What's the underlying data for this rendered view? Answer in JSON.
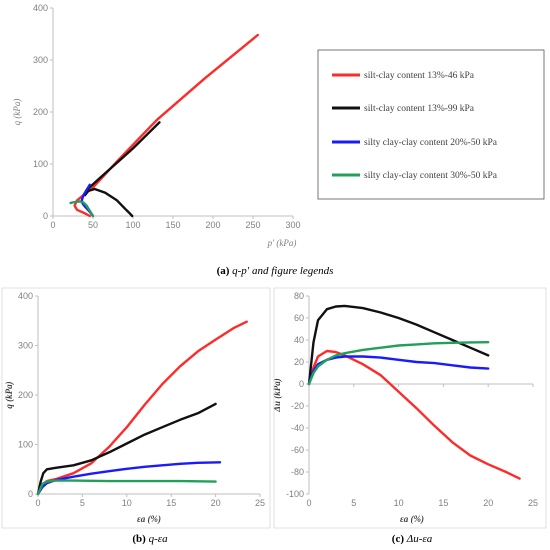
{
  "colors": {
    "red": "#ff2a2a",
    "black": "#111111",
    "blue": "#1a1aff",
    "green": "#21a05a"
  },
  "legend": {
    "items": [
      {
        "label": "silt-clay content 13%-46 kPa",
        "color": "#ff2a2a"
      },
      {
        "label": "silt-clay content 13%-99 kPa",
        "color": "#111111"
      },
      {
        "label": "silty clay-clay content 20%-50 kPa",
        "color": "#1a1aff"
      },
      {
        "label": "silty clay-clay content 30%-50 kPa",
        "color": "#21a05a"
      }
    ]
  },
  "captions": {
    "a": {
      "tag": "(a) ",
      "text": "q-p′ and figure legends"
    },
    "b": {
      "tag": "(b) ",
      "text": "q-εa"
    },
    "c": {
      "tag": "(c) ",
      "text": "Δu-εa"
    }
  },
  "chart_data": [
    {
      "id": "a",
      "type": "line",
      "xlabel": "p′ (kPa)",
      "ylabel": "q (kPa)",
      "xlim": [
        0,
        300
      ],
      "ylim": [
        0,
        400
      ],
      "xticks": [
        0,
        50,
        100,
        150,
        200,
        250,
        300
      ],
      "yticks": [
        0,
        100,
        200,
        300,
        400
      ],
      "grid": false,
      "legend": "right",
      "series": [
        {
          "name": "silt-clay content 13%-46 kPa",
          "color": "#ff2a2a",
          "x": [
            46,
            40,
            30,
            27,
            30,
            38,
            50,
            80,
            130,
            190,
            256
          ],
          "y": [
            0,
            5,
            12,
            20,
            30,
            40,
            55,
            105,
            185,
            265,
            348
          ]
        },
        {
          "name": "silt-clay content 13%-99 kPa",
          "color": "#111111",
          "x": [
            99,
            96,
            90,
            80,
            65,
            52,
            44,
            40,
            42,
            60,
            100,
            133
          ],
          "y": [
            0,
            5,
            14,
            30,
            45,
            52,
            48,
            40,
            50,
            75,
            130,
            180
          ]
        },
        {
          "name": "silty clay-clay content 20%-50 kPa",
          "color": "#1a1aff",
          "x": [
            50,
            46,
            40,
            37,
            36,
            38,
            42,
            46
          ],
          "y": [
            0,
            8,
            18,
            24,
            30,
            40,
            50,
            60
          ]
        },
        {
          "name": "silty clay-clay content 30%-50 kPa",
          "color": "#21a05a",
          "x": [
            50,
            46,
            42,
            38,
            33,
            28,
            24,
            22
          ],
          "y": [
            0,
            10,
            20,
            26,
            28,
            27,
            26,
            25
          ]
        }
      ]
    },
    {
      "id": "b",
      "type": "line",
      "xlabel": "εa (%)",
      "ylabel": "q (kPa)",
      "xlim": [
        0,
        25
      ],
      "ylim": [
        0,
        400
      ],
      "xticks": [
        0,
        5,
        10,
        15,
        20,
        25
      ],
      "yticks": [
        0,
        100,
        200,
        300,
        400
      ],
      "grid": false,
      "series": [
        {
          "name": "silt-clay content 13%-46 kPa",
          "color": "#ff2a2a",
          "x": [
            0,
            0.5,
            1,
            2,
            4,
            6,
            8,
            10,
            12,
            14,
            16,
            18,
            20,
            22,
            23.5
          ],
          "y": [
            0,
            20,
            26,
            30,
            42,
            62,
            95,
            135,
            180,
            222,
            258,
            288,
            312,
            335,
            348
          ]
        },
        {
          "name": "silt-clay content 13%-99 kPa",
          "color": "#111111",
          "x": [
            0,
            0.3,
            0.6,
            1,
            2,
            4,
            6,
            8,
            10,
            12,
            14,
            16,
            18,
            20
          ],
          "y": [
            0,
            25,
            42,
            50,
            53,
            58,
            68,
            84,
            102,
            120,
            135,
            150,
            163,
            182
          ]
        },
        {
          "name": "silty clay-clay content 20%-50 kPa",
          "color": "#1a1aff",
          "x": [
            0,
            0.5,
            1,
            2,
            4,
            6,
            8,
            10,
            12,
            14,
            16,
            18,
            20.5
          ],
          "y": [
            0,
            14,
            22,
            28,
            35,
            41,
            46,
            51,
            55,
            58,
            61,
            63,
            64
          ]
        },
        {
          "name": "silty clay-clay content 30%-50 kPa",
          "color": "#21a05a",
          "x": [
            0,
            0.5,
            1,
            2,
            4,
            8,
            12,
            16,
            20
          ],
          "y": [
            0,
            20,
            25,
            27,
            27,
            26,
            26,
            26,
            25
          ]
        }
      ]
    },
    {
      "id": "c",
      "type": "line",
      "xlabel": "εa (%)",
      "ylabel": "Δu (kPa)",
      "xlim": [
        0,
        25
      ],
      "ylim": [
        -100,
        80
      ],
      "xticks": [
        0,
        5,
        10,
        15,
        20,
        25
      ],
      "yticks": [
        -100,
        -80,
        -60,
        -40,
        -20,
        0,
        20,
        40,
        60,
        80
      ],
      "grid": false,
      "series": [
        {
          "name": "silt-clay content 13%-46 kPa",
          "color": "#ff2a2a",
          "x": [
            0,
            0.5,
            1,
            2,
            3,
            4,
            6,
            8,
            10,
            12,
            14,
            16,
            18,
            20,
            22,
            23.5
          ],
          "y": [
            0,
            15,
            25,
            30,
            29,
            26,
            18,
            8,
            -7,
            -22,
            -38,
            -53,
            -65,
            -73,
            -80,
            -86
          ]
        },
        {
          "name": "silt-clay content 13%-99 kPa",
          "color": "#111111",
          "x": [
            0,
            0.5,
            1,
            2,
            3,
            4,
            6,
            8,
            10,
            12,
            14,
            16,
            18,
            20
          ],
          "y": [
            0,
            38,
            58,
            68,
            70.5,
            71,
            69,
            65,
            60,
            54,
            47,
            40,
            33,
            26
          ]
        },
        {
          "name": "silty clay-clay content 20%-50 kPa",
          "color": "#1a1aff",
          "x": [
            0,
            0.5,
            1,
            2,
            3,
            4,
            6,
            8,
            10,
            12,
            14,
            16,
            18,
            20
          ],
          "y": [
            0,
            12,
            18,
            22,
            24,
            25,
            25,
            24,
            22,
            20,
            19,
            17,
            15,
            14
          ]
        },
        {
          "name": "silty clay-clay content 30%-50 kPa",
          "color": "#21a05a",
          "x": [
            0,
            0.5,
            1,
            2,
            3,
            4,
            6,
            8,
            10,
            12,
            14,
            16,
            18,
            20
          ],
          "y": [
            0,
            10,
            16,
            22,
            26,
            28,
            31,
            33,
            35,
            36,
            37,
            37.5,
            37.8,
            38
          ]
        }
      ]
    }
  ]
}
